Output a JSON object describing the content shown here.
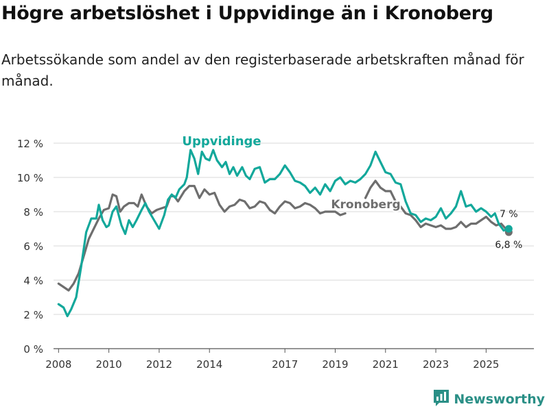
{
  "title": "Högre arbetslöshet i Uppvidinge än i Kronoberg",
  "subtitle": "Arbetssökande som andel av den registerbaserade arbetskraften månad för månad.",
  "brand": {
    "name": "Newsworthy",
    "color": "#2a8f86"
  },
  "colors": {
    "uppvidinge": "#13a89b",
    "kronoberg": "#6e6e6e",
    "grid": "#d9d9d9"
  },
  "chart_data": {
    "type": "line",
    "title": "Högre arbetslöshet i Uppvidinge än i Kronoberg",
    "xlabel": "",
    "ylabel": "",
    "xlim": [
      2007.8,
      2026.9
    ],
    "ylim": [
      0,
      12
    ],
    "y_ticks": [
      0,
      2,
      4,
      6,
      8,
      10,
      12
    ],
    "y_tick_labels": [
      "0 %",
      "2 %",
      "4 %",
      "6 %",
      "8 %",
      "10 %",
      "12 %"
    ],
    "x_ticks": [
      2008,
      2010,
      2012,
      2014,
      2017,
      2019,
      2021,
      2023,
      2025
    ],
    "x_tick_labels": [
      "2008",
      "2010",
      "2012",
      "2014",
      "2017",
      "2019",
      "2021",
      "2023",
      "2025"
    ],
    "grid": true,
    "series": [
      {
        "name": "Uppvidinge",
        "label": "Uppvidinge",
        "end_label": "7 %",
        "color": "#13a89b",
        "points": [
          [
            2008.0,
            2.6
          ],
          [
            2008.2,
            2.4
          ],
          [
            2008.35,
            1.9
          ],
          [
            2008.5,
            2.3
          ],
          [
            2008.7,
            3.0
          ],
          [
            2008.9,
            4.8
          ],
          [
            2009.1,
            6.8
          ],
          [
            2009.3,
            7.6
          ],
          [
            2009.5,
            7.6
          ],
          [
            2009.6,
            8.4
          ],
          [
            2009.75,
            7.5
          ],
          [
            2009.9,
            7.1
          ],
          [
            2010.0,
            7.2
          ],
          [
            2010.15,
            8.0
          ],
          [
            2010.3,
            8.3
          ],
          [
            2010.5,
            7.2
          ],
          [
            2010.65,
            6.7
          ],
          [
            2010.8,
            7.5
          ],
          [
            2010.95,
            7.1
          ],
          [
            2011.1,
            7.5
          ],
          [
            2011.3,
            8.1
          ],
          [
            2011.45,
            8.5
          ],
          [
            2011.6,
            8.0
          ],
          [
            2011.8,
            7.5
          ],
          [
            2012.0,
            7.0
          ],
          [
            2012.2,
            7.8
          ],
          [
            2012.35,
            8.7
          ],
          [
            2012.5,
            9.0
          ],
          [
            2012.65,
            8.8
          ],
          [
            2012.8,
            9.3
          ],
          [
            2013.0,
            9.6
          ],
          [
            2013.1,
            10.0
          ],
          [
            2013.25,
            11.6
          ],
          [
            2013.4,
            11.1
          ],
          [
            2013.55,
            10.2
          ],
          [
            2013.7,
            11.5
          ],
          [
            2013.85,
            11.1
          ],
          [
            2014.0,
            11.0
          ],
          [
            2014.15,
            11.6
          ],
          [
            2014.3,
            11.0
          ],
          [
            2014.5,
            10.6
          ],
          [
            2014.65,
            10.9
          ],
          [
            2014.8,
            10.2
          ],
          [
            2014.95,
            10.6
          ],
          [
            2015.1,
            10.1
          ],
          [
            2015.3,
            10.6
          ],
          [
            2015.45,
            10.1
          ],
          [
            2015.6,
            9.9
          ],
          [
            2015.8,
            10.5
          ],
          [
            2016.0,
            10.6
          ],
          [
            2016.2,
            9.7
          ],
          [
            2016.4,
            9.9
          ],
          [
            2016.6,
            9.9
          ],
          [
            2016.8,
            10.2
          ],
          [
            2017.0,
            10.7
          ],
          [
            2017.2,
            10.3
          ],
          [
            2017.4,
            9.8
          ],
          [
            2017.6,
            9.7
          ],
          [
            2017.8,
            9.5
          ],
          [
            2018.0,
            9.1
          ],
          [
            2018.2,
            9.4
          ],
          [
            2018.4,
            9.0
          ],
          [
            2018.6,
            9.6
          ],
          [
            2018.8,
            9.2
          ],
          [
            2019.0,
            9.8
          ],
          [
            2019.2,
            10.0
          ],
          [
            2019.4,
            9.6
          ],
          [
            2019.6,
            9.8
          ],
          [
            2019.8,
            9.7
          ],
          [
            2020.0,
            9.9
          ],
          [
            2020.2,
            10.2
          ],
          [
            2020.4,
            10.7
          ],
          [
            2020.6,
            11.5
          ],
          [
            2020.8,
            10.9
          ],
          [
            2021.0,
            10.3
          ],
          [
            2021.2,
            10.2
          ],
          [
            2021.4,
            9.7
          ],
          [
            2021.6,
            9.6
          ],
          [
            2021.8,
            8.6
          ],
          [
            2022.0,
            7.9
          ],
          [
            2022.2,
            7.8
          ],
          [
            2022.4,
            7.4
          ],
          [
            2022.6,
            7.6
          ],
          [
            2022.8,
            7.5
          ],
          [
            2023.0,
            7.7
          ],
          [
            2023.2,
            8.2
          ],
          [
            2023.4,
            7.6
          ],
          [
            2023.6,
            7.9
          ],
          [
            2023.8,
            8.3
          ],
          [
            2024.0,
            9.2
          ],
          [
            2024.2,
            8.3
          ],
          [
            2024.4,
            8.4
          ],
          [
            2024.6,
            8.0
          ],
          [
            2024.8,
            8.2
          ],
          [
            2025.0,
            8.0
          ],
          [
            2025.2,
            7.7
          ],
          [
            2025.35,
            7.9
          ],
          [
            2025.5,
            7.3
          ],
          [
            2025.7,
            6.9
          ],
          [
            2025.9,
            7.0
          ]
        ]
      },
      {
        "name": "Kronoberg",
        "label": "Kronoberg",
        "end_label": "6,8 %",
        "color": "#6e6e6e",
        "points": [
          [
            2008.0,
            3.8
          ],
          [
            2008.2,
            3.6
          ],
          [
            2008.4,
            3.4
          ],
          [
            2008.6,
            3.8
          ],
          [
            2008.8,
            4.4
          ],
          [
            2009.0,
            5.4
          ],
          [
            2009.2,
            6.4
          ],
          [
            2009.4,
            7.0
          ],
          [
            2009.6,
            7.6
          ],
          [
            2009.8,
            8.1
          ],
          [
            2010.0,
            8.2
          ],
          [
            2010.15,
            9.0
          ],
          [
            2010.3,
            8.9
          ],
          [
            2010.45,
            8.0
          ],
          [
            2010.6,
            8.3
          ],
          [
            2010.8,
            8.5
          ],
          [
            2011.0,
            8.5
          ],
          [
            2011.15,
            8.3
          ],
          [
            2011.3,
            9.0
          ],
          [
            2011.5,
            8.3
          ],
          [
            2011.7,
            7.9
          ],
          [
            2011.9,
            8.1
          ],
          [
            2012.1,
            8.2
          ],
          [
            2012.3,
            8.3
          ],
          [
            2012.45,
            8.9
          ],
          [
            2012.6,
            8.9
          ],
          [
            2012.75,
            8.6
          ],
          [
            2013.0,
            9.2
          ],
          [
            2013.2,
            9.5
          ],
          [
            2013.4,
            9.5
          ],
          [
            2013.6,
            8.8
          ],
          [
            2013.8,
            9.3
          ],
          [
            2014.0,
            9.0
          ],
          [
            2014.2,
            9.1
          ],
          [
            2014.4,
            8.4
          ],
          [
            2014.6,
            8.0
          ],
          [
            2014.8,
            8.3
          ],
          [
            2015.0,
            8.4
          ],
          [
            2015.2,
            8.7
          ],
          [
            2015.4,
            8.6
          ],
          [
            2015.6,
            8.2
          ],
          [
            2015.8,
            8.3
          ],
          [
            2016.0,
            8.6
          ],
          [
            2016.2,
            8.5
          ],
          [
            2016.4,
            8.1
          ],
          [
            2016.6,
            7.9
          ],
          [
            2016.8,
            8.3
          ],
          [
            2017.0,
            8.6
          ],
          [
            2017.2,
            8.5
          ],
          [
            2017.4,
            8.2
          ],
          [
            2017.6,
            8.3
          ],
          [
            2017.8,
            8.5
          ],
          [
            2018.0,
            8.4
          ],
          [
            2018.2,
            8.2
          ],
          [
            2018.4,
            7.9
          ],
          [
            2018.6,
            8.0
          ],
          [
            2018.8,
            8.0
          ],
          [
            2019.0,
            8.0
          ],
          [
            2019.2,
            7.8
          ],
          [
            2019.4,
            7.9
          ]
        ],
        "points_after_label": [
          [
            2020.2,
            8.8
          ],
          [
            2020.4,
            9.4
          ],
          [
            2020.6,
            9.8
          ],
          [
            2020.8,
            9.4
          ],
          [
            2021.0,
            9.2
          ],
          [
            2021.2,
            9.2
          ],
          [
            2021.4,
            8.6
          ],
          [
            2021.6,
            8.3
          ],
          [
            2021.8,
            7.9
          ],
          [
            2022.0,
            7.8
          ],
          [
            2022.2,
            7.5
          ],
          [
            2022.4,
            7.1
          ],
          [
            2022.6,
            7.3
          ],
          [
            2022.8,
            7.2
          ],
          [
            2023.0,
            7.1
          ],
          [
            2023.2,
            7.2
          ],
          [
            2023.4,
            7.0
          ],
          [
            2023.6,
            7.0
          ],
          [
            2023.8,
            7.1
          ],
          [
            2024.0,
            7.4
          ],
          [
            2024.2,
            7.1
          ],
          [
            2024.4,
            7.3
          ],
          [
            2024.6,
            7.3
          ],
          [
            2024.8,
            7.5
          ],
          [
            2025.0,
            7.7
          ],
          [
            2025.2,
            7.4
          ],
          [
            2025.4,
            7.2
          ],
          [
            2025.6,
            7.3
          ],
          [
            2025.9,
            6.8
          ]
        ]
      }
    ]
  }
}
